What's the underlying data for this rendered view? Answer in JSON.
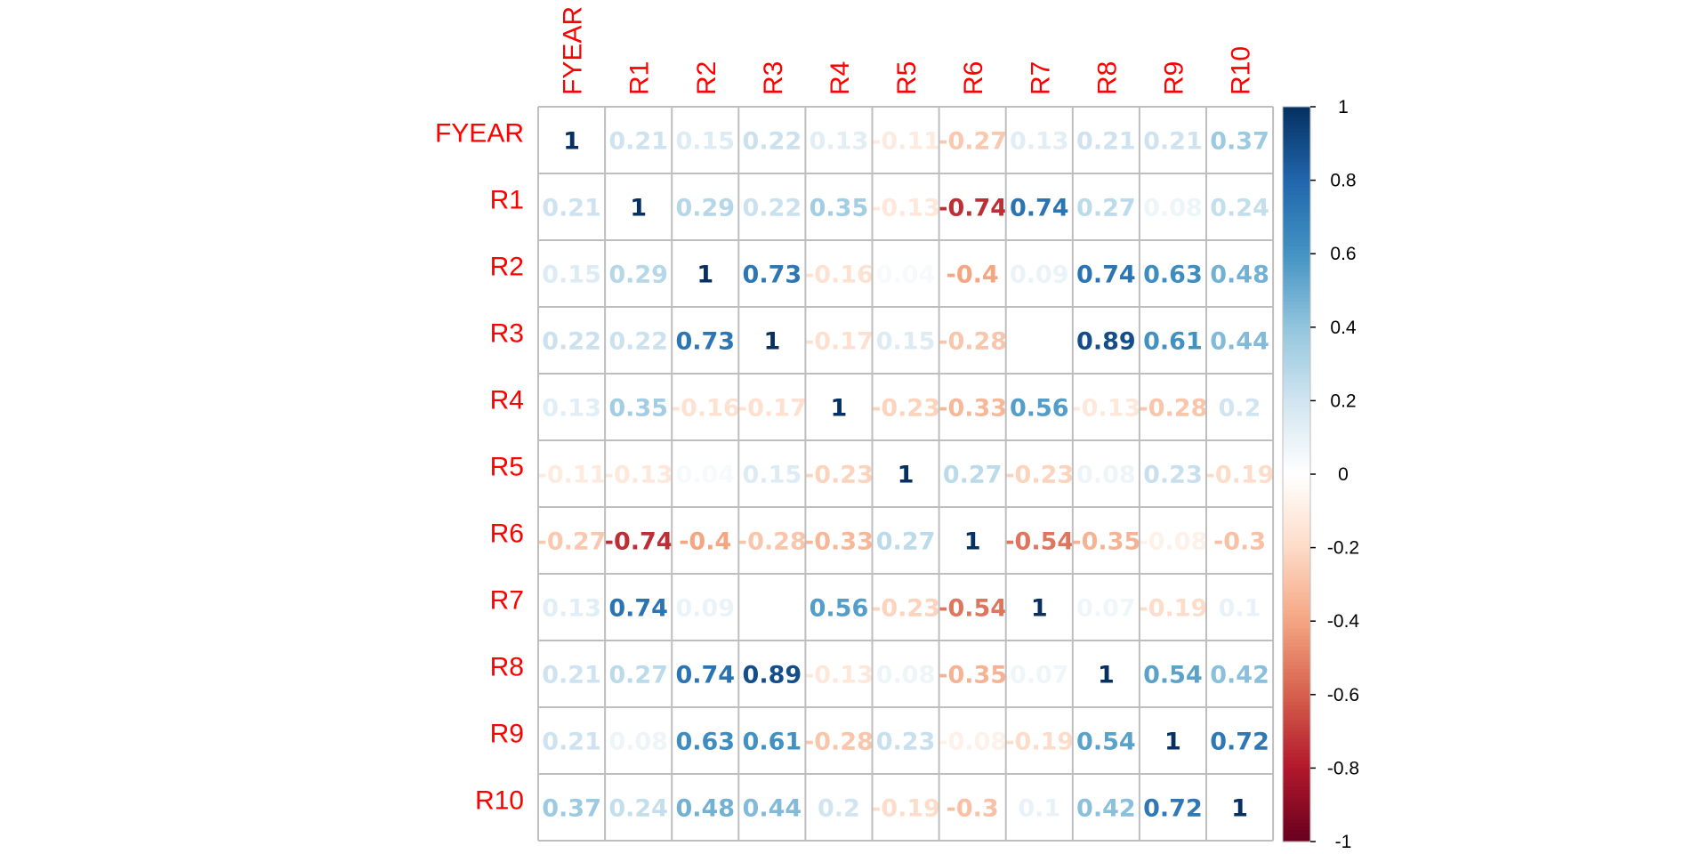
{
  "chart_data": {
    "type": "heatmap",
    "variables": [
      "FYEAR",
      "R1",
      "R2",
      "R3",
      "R4",
      "R5",
      "R6",
      "R7",
      "R8",
      "R9",
      "R10"
    ],
    "matrix": [
      [
        "1",
        "0.21",
        "0.15",
        "0.22",
        "0.13",
        "-0.11",
        "-0.27",
        "0.13",
        "0.21",
        "0.21",
        "0.37"
      ],
      [
        "0.21",
        "1",
        "0.29",
        "0.22",
        "0.35",
        "-0.13",
        "-0.74",
        "0.74",
        "0.27",
        "0.08",
        "0.24"
      ],
      [
        "0.15",
        "0.29",
        "1",
        "0.73",
        "-0.16",
        "0.04",
        "-0.4",
        "0.09",
        "0.74",
        "0.63",
        "0.48"
      ],
      [
        "0.22",
        "0.22",
        "0.73",
        "1",
        "-0.17",
        "0.15",
        "-0.28",
        "0",
        "0.89",
        "0.61",
        "0.44"
      ],
      [
        "0.13",
        "0.35",
        "-0.16",
        "-0.17",
        "1",
        "-0.23",
        "-0.33",
        "0.56",
        "-0.13",
        "-0.28",
        "0.2"
      ],
      [
        "-0.11",
        "-0.13",
        "0.04",
        "0.15",
        "-0.23",
        "1",
        "0.27",
        "-0.23",
        "0.08",
        "0.23",
        "-0.19"
      ],
      [
        "-0.27",
        "-0.74",
        "-0.4",
        "-0.28",
        "-0.33",
        "0.27",
        "1",
        "-0.54",
        "-0.35",
        "-0.08",
        "-0.3"
      ],
      [
        "0.13",
        "0.74",
        "0.09",
        "0",
        "0.56",
        "-0.23",
        "-0.54",
        "1",
        "0.07",
        "-0.19",
        "0.1"
      ],
      [
        "0.21",
        "0.27",
        "0.74",
        "0.89",
        "-0.13",
        "0.08",
        "-0.35",
        "0.07",
        "1",
        "0.54",
        "0.42"
      ],
      [
        "0.21",
        "0.08",
        "0.63",
        "0.61",
        "-0.28",
        "0.23",
        "-0.08",
        "-0.19",
        "0.54",
        "1",
        "0.72"
      ],
      [
        "0.37",
        "0.24",
        "0.48",
        "0.44",
        "0.2",
        "-0.19",
        "-0.3",
        "0.1",
        "0.42",
        "0.72",
        "1"
      ]
    ],
    "color_scale": {
      "min": -1,
      "max": 1,
      "ticks": [
        "1",
        "0.8",
        "0.6",
        "0.4",
        "0.2",
        "0",
        "-0.2",
        "-0.4",
        "-0.6",
        "-0.8",
        "-1"
      ],
      "palette": [
        "#67001F",
        "#B2182B",
        "#D6604D",
        "#F4A582",
        "#FDDBC7",
        "#FFFFFF",
        "#D1E5F0",
        "#92C5DE",
        "#4393C3",
        "#2166AC",
        "#053061"
      ]
    },
    "label_color": "#FF0000",
    "grid_color": "#BEBEBE",
    "legend_position": "right"
  }
}
